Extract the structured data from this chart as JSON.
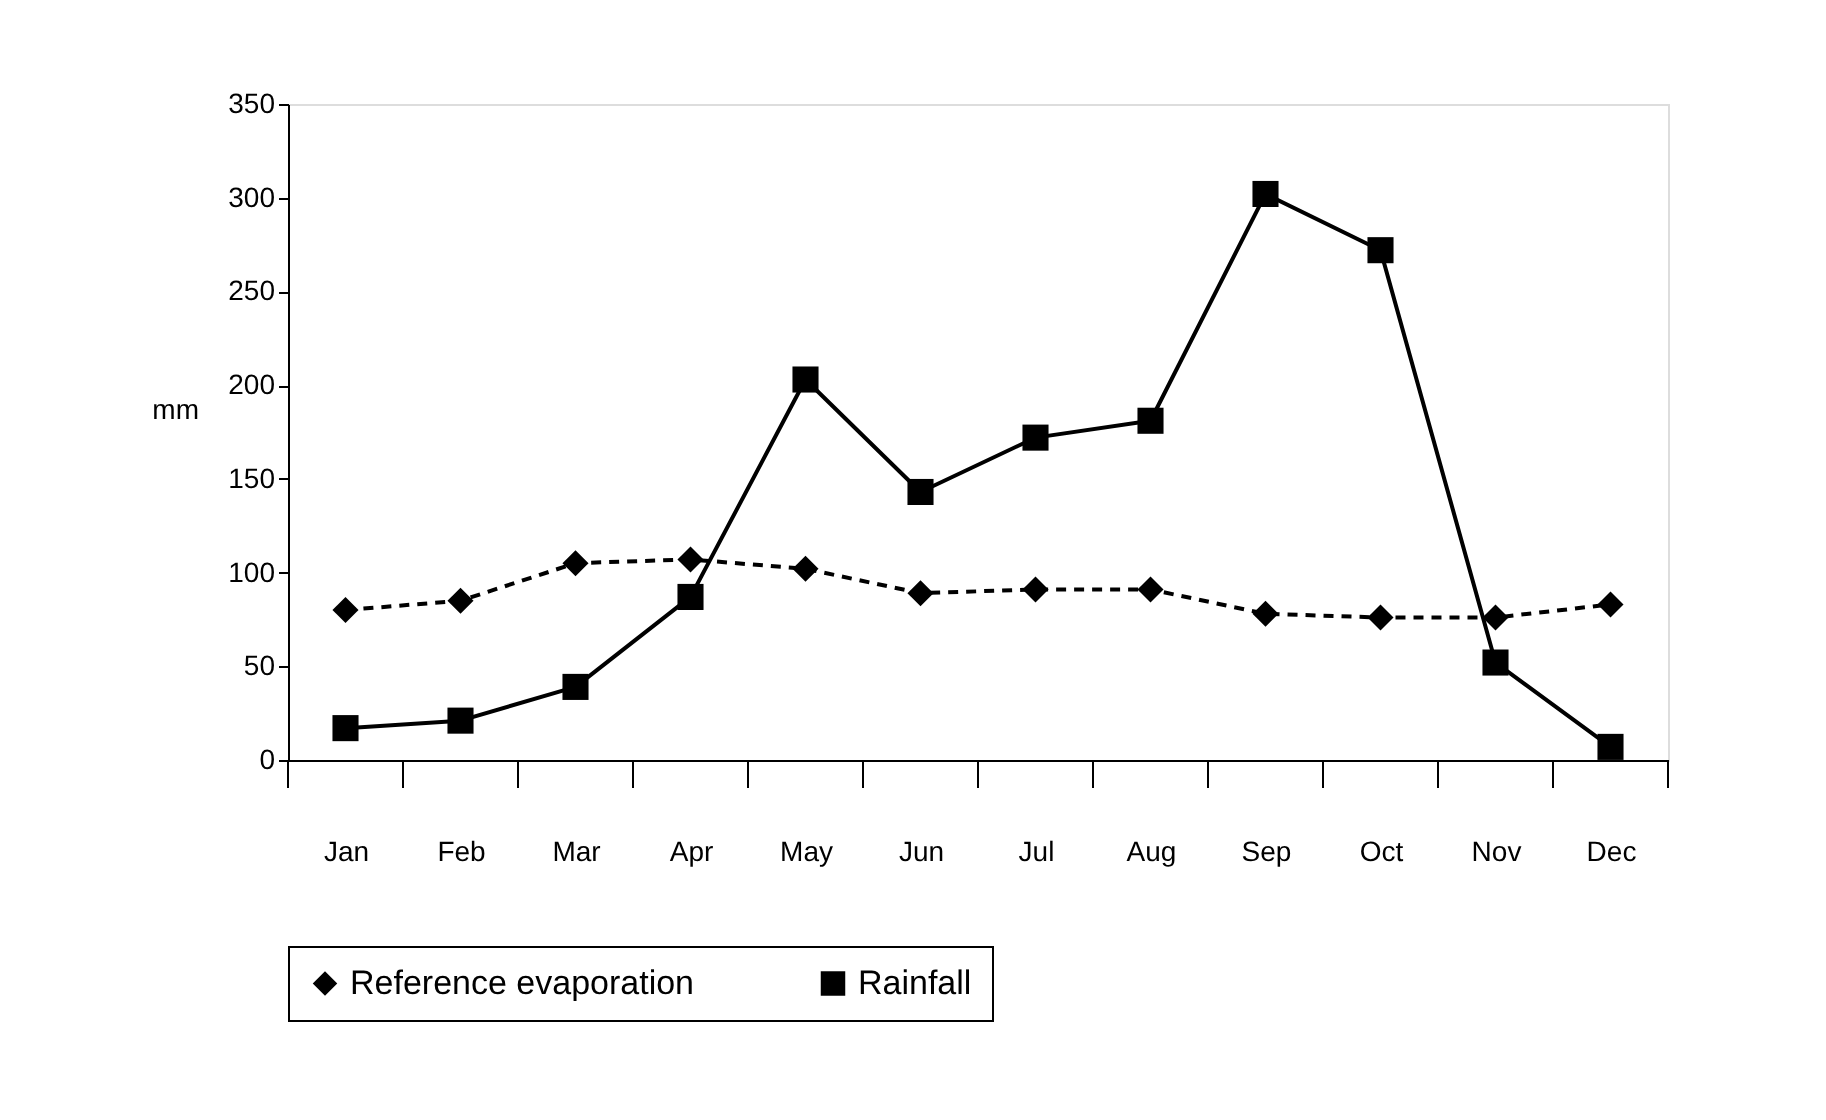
{
  "chart_data": {
    "type": "line",
    "ylabel": "mm",
    "categories": [
      "Jan",
      "Feb",
      "Mar",
      "Apr",
      "May",
      "Jun",
      "Jul",
      "Aug",
      "Sep",
      "Oct",
      "Nov",
      "Dec"
    ],
    "series": [
      {
        "name": "Reference evaporation",
        "color": "#000000",
        "marker": "diamond",
        "line_style": "dashed",
        "values": [
          80,
          85,
          105,
          107,
          102,
          89,
          91,
          91,
          78,
          76,
          76,
          83
        ]
      },
      {
        "name": "Rainfall",
        "color": "#000000",
        "marker": "square",
        "line_style": "solid",
        "values": [
          17,
          21,
          39,
          87,
          203,
          143,
          172,
          181,
          302,
          272,
          52,
          7
        ]
      }
    ],
    "ylim": [
      0,
      350
    ],
    "yticks": [
      0,
      50,
      100,
      150,
      200,
      250,
      300,
      350
    ],
    "grid": false,
    "legend": "bottom"
  }
}
